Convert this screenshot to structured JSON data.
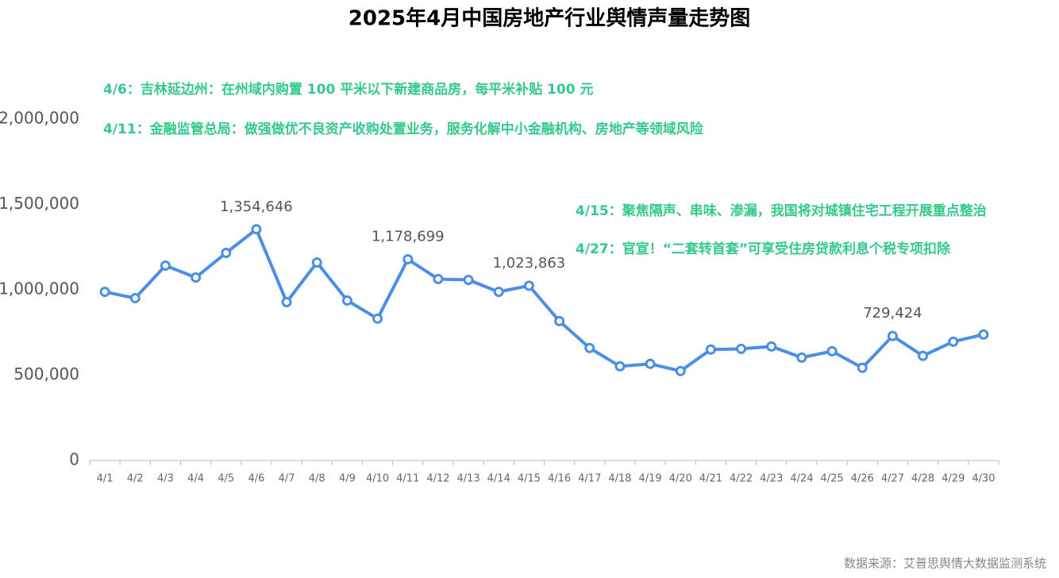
{
  "chart_data": {
    "type": "line",
    "title": "2025年4月中国房地产行业舆情声量走势图",
    "categories": [
      "4/1",
      "4/2",
      "4/3",
      "4/4",
      "4/5",
      "4/6",
      "4/7",
      "4/8",
      "4/9",
      "4/10",
      "4/11",
      "4/12",
      "4/13",
      "4/14",
      "4/15",
      "4/16",
      "4/17",
      "4/18",
      "4/19",
      "4/20",
      "4/21",
      "4/22",
      "4/23",
      "4/24",
      "4/25",
      "4/26",
      "4/27",
      "4/28",
      "4/29",
      "4/30"
    ],
    "series": [
      {
        "color": "#4a8ee8",
        "values": [
          988000,
          951000,
          1142000,
          1072000,
          1216000,
          1354646,
          928000,
          1160000,
          937000,
          831000,
          1178699,
          1063000,
          1058000,
          988000,
          1023863,
          817000,
          659000,
          552000,
          566000,
          524000,
          650000,
          654000,
          668000,
          603000,
          640000,
          543000,
          729424,
          613000,
          696000,
          738000
        ],
        "value_labels": [
          null,
          null,
          null,
          null,
          null,
          "1,354,646",
          null,
          null,
          null,
          null,
          "1,178,699",
          null,
          null,
          null,
          "1,023,863",
          null,
          null,
          null,
          null,
          null,
          null,
          null,
          null,
          null,
          null,
          null,
          "729,424",
          null,
          null,
          null
        ]
      }
    ],
    "ylim": [
      0,
      2000000
    ],
    "yticks": [
      0,
      {
        "value": 500000,
        "label": "500,000"
      },
      {
        "value": 1000000,
        "label": "1,000,000"
      },
      {
        "value": 1500000,
        "label": "1,500,000"
      },
      {
        "value": 2000000,
        "label": "2,000,000"
      }
    ],
    "grid": false,
    "annotations": [
      "4/6：吉林延边州：在州域内购置 100 平米以下新建商品房，每平米补贴 100 元",
      "4/11：金融监管总局：做强做优不良资产收购处置业务，服务化解中小金融机构、房地产等领域风险",
      "4/15：聚焦隔声、串味、渗漏，我国将对城镇住宅工程开展重点整治",
      "4/27：官宣！“二套转首套”可享受住房贷款利息个税专项扣除"
    ],
    "annotation_color": "#35c98a",
    "source": "数据来源：艾普思舆情大数据监测系统"
  }
}
